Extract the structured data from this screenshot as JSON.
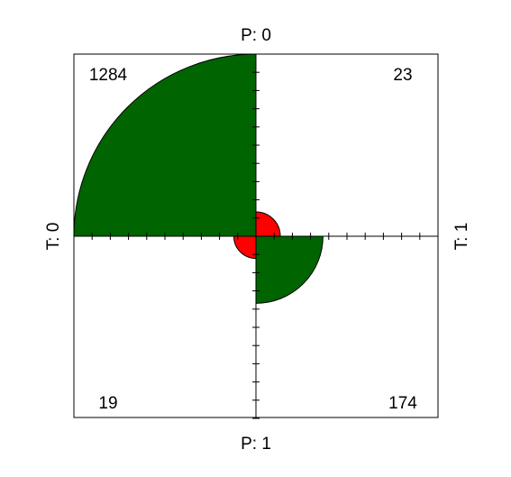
{
  "chart_data": {
    "type": "fourfold",
    "row_variable": "T",
    "column_variable": "P",
    "labels": {
      "top": "P: 0",
      "bottom": "P: 1",
      "left": "T: 0",
      "right": "T: 1"
    },
    "cells": [
      {
        "quadrant": "top-left",
        "T": "0",
        "P": "0",
        "count": 1284,
        "label": "1284",
        "color": "#006400"
      },
      {
        "quadrant": "top-right",
        "T": "1",
        "P": "0",
        "count": 23,
        "label": "23",
        "color": "#ff0000"
      },
      {
        "quadrant": "bottom-left",
        "T": "0",
        "P": "1",
        "count": 19,
        "label": "19",
        "color": "#ff0000"
      },
      {
        "quadrant": "bottom-right",
        "T": "1",
        "P": "1",
        "count": 174,
        "label": "174",
        "color": "#006400"
      }
    ],
    "frame_color": "#000000",
    "grid": false,
    "legend": "none"
  }
}
